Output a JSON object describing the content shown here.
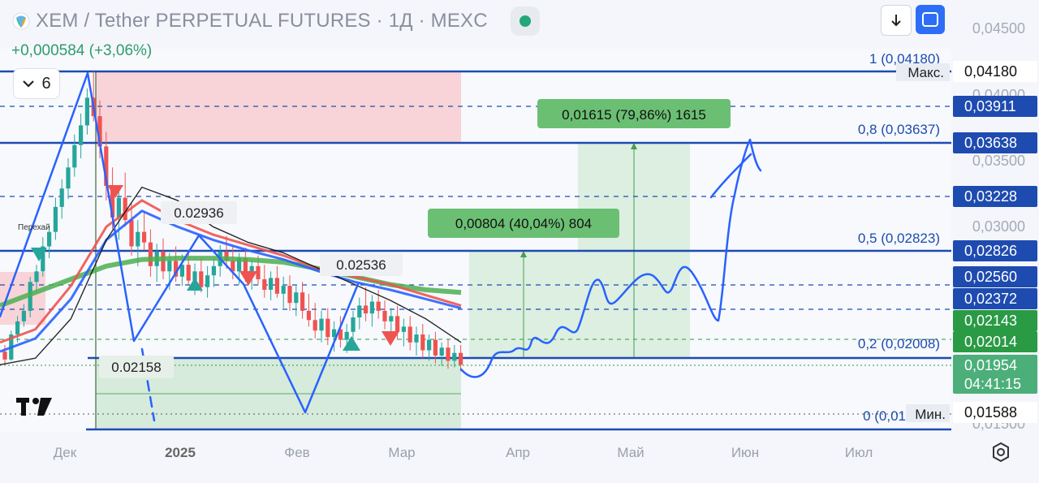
{
  "header": {
    "title": "XEM / Tether PERPETUAL FUTURES · 1Д · MEXC",
    "change": "+0,000584 (+3,06%)",
    "collapse_count": "6"
  },
  "toolbar": {
    "download_icon": "arrow-down-icon",
    "fullscreen_icon": "fullscreen-icon"
  },
  "colors": {
    "up": "#26a69a",
    "down": "#ef5350",
    "drawing": "#2962ff",
    "ma_green": "#4caf50",
    "ma_red": "#ef5350",
    "ma_blue": "#2962ff",
    "ma_black": "#111111",
    "zone_red": "#f8d4d8",
    "zone_green": "#d6ebdb",
    "label_green": "#6bbf73",
    "axis_dark_blue": "#1e4bb0",
    "axis_green": "#2a9a45"
  },
  "chart_data": {
    "type": "candlestick",
    "x_ticks": [
      "Дек",
      "2025",
      "Фев",
      "Мар",
      "Апр",
      "Май",
      "Июн",
      "Июл"
    ],
    "y_ticks": [
      "0,04500",
      "0,04000",
      "0,03500",
      "0,03000",
      "0,01500"
    ],
    "y_range": [
      0.015,
      0.0455
    ],
    "price_tags": [
      {
        "value": "0,04180",
        "style": "white"
      },
      {
        "value": "0,03911",
        "style": "dark"
      },
      {
        "value": "0,03638",
        "style": "dark"
      },
      {
        "value": "0,03228",
        "style": "dark"
      },
      {
        "value": "0,02826",
        "style": "dark"
      },
      {
        "value": "0,02560",
        "style": "dark"
      },
      {
        "value": "0,02372",
        "style": "dark"
      },
      {
        "value": "0,02143",
        "style": "green"
      },
      {
        "value": "0,02014",
        "style": "green"
      },
      {
        "value": "0,01954",
        "style": "current",
        "countdown": "04:41:15"
      },
      {
        "value": "0,01588",
        "style": "white"
      }
    ],
    "fib_labels": [
      "1 (0,04180)",
      "0,8 (0,03637)",
      "0,5 (0,02823)",
      "0,2 (0,02008)",
      "0 (0,01"
    ],
    "max_label": "Макс.",
    "min_label": "Мин.",
    "annotations": [
      "0.02936",
      "0.02536",
      "0.02158",
      "Перехай"
    ],
    "targets": [
      "0,00804 (40,04%) 804",
      "0,01615 (79,86%) 1615"
    ],
    "candles": [
      [
        0.0205,
        0.021,
        0.0195,
        0.0199
      ],
      [
        0.0199,
        0.0221,
        0.0198,
        0.0218
      ],
      [
        0.0218,
        0.0232,
        0.0212,
        0.0228
      ],
      [
        0.0228,
        0.0241,
        0.0224,
        0.0236
      ],
      [
        0.0236,
        0.0262,
        0.0231,
        0.0258
      ],
      [
        0.0258,
        0.0271,
        0.025,
        0.0266
      ],
      [
        0.0266,
        0.0292,
        0.0262,
        0.0285
      ],
      [
        0.0285,
        0.0301,
        0.0276,
        0.0296
      ],
      [
        0.0296,
        0.0322,
        0.029,
        0.0315
      ],
      [
        0.0315,
        0.0336,
        0.0306,
        0.0329
      ],
      [
        0.0329,
        0.0352,
        0.0321,
        0.0345
      ],
      [
        0.0345,
        0.037,
        0.0338,
        0.0362
      ],
      [
        0.0362,
        0.0386,
        0.0352,
        0.0377
      ],
      [
        0.0377,
        0.0405,
        0.037,
        0.0398
      ],
      [
        0.0398,
        0.0418,
        0.038,
        0.0384
      ],
      [
        0.0384,
        0.0396,
        0.0352,
        0.0361
      ],
      [
        0.0361,
        0.0372,
        0.032,
        0.0331
      ],
      [
        0.0331,
        0.0345,
        0.0298,
        0.0307
      ],
      [
        0.0307,
        0.033,
        0.029,
        0.0322
      ],
      [
        0.0322,
        0.0341,
        0.03,
        0.0305
      ],
      [
        0.0305,
        0.0318,
        0.0278,
        0.0285
      ],
      [
        0.0285,
        0.0305,
        0.027,
        0.0296
      ],
      [
        0.0296,
        0.0312,
        0.0282,
        0.0288
      ],
      [
        0.0288,
        0.0298,
        0.0262,
        0.027
      ],
      [
        0.027,
        0.0287,
        0.0258,
        0.0281
      ],
      [
        0.0281,
        0.0291,
        0.026,
        0.0266
      ],
      [
        0.0266,
        0.028,
        0.0252,
        0.0274
      ],
      [
        0.0274,
        0.0285,
        0.0258,
        0.0262
      ],
      [
        0.0262,
        0.0279,
        0.0255,
        0.0271
      ],
      [
        0.0271,
        0.0282,
        0.0256,
        0.0259
      ],
      [
        0.0259,
        0.0272,
        0.0248,
        0.0266
      ],
      [
        0.0266,
        0.0276,
        0.025,
        0.0254
      ],
      [
        0.0254,
        0.027,
        0.0246,
        0.0263
      ],
      [
        0.0263,
        0.0276,
        0.0254,
        0.027
      ],
      [
        0.027,
        0.0286,
        0.0262,
        0.0281
      ],
      [
        0.0281,
        0.0293,
        0.0268,
        0.0274
      ],
      [
        0.0274,
        0.0285,
        0.026,
        0.0266
      ],
      [
        0.0266,
        0.028,
        0.0256,
        0.0276
      ],
      [
        0.0276,
        0.0284,
        0.0258,
        0.0262
      ],
      [
        0.0262,
        0.0274,
        0.0252,
        0.027
      ],
      [
        0.027,
        0.0278,
        0.0256,
        0.026
      ],
      [
        0.026,
        0.0271,
        0.0246,
        0.0252
      ],
      [
        0.0252,
        0.0266,
        0.0244,
        0.0261
      ],
      [
        0.0261,
        0.027,
        0.0246,
        0.0249
      ],
      [
        0.0249,
        0.0262,
        0.0238,
        0.0255
      ],
      [
        0.0255,
        0.0263,
        0.0236,
        0.0242
      ],
      [
        0.0242,
        0.0256,
        0.0232,
        0.025
      ],
      [
        0.025,
        0.0258,
        0.023,
        0.0236
      ],
      [
        0.0236,
        0.0249,
        0.0224,
        0.0229
      ],
      [
        0.0229,
        0.0242,
        0.0215,
        0.0221
      ],
      [
        0.0221,
        0.0236,
        0.0212,
        0.023
      ],
      [
        0.023,
        0.0238,
        0.021,
        0.0216
      ],
      [
        0.0216,
        0.0228,
        0.0205,
        0.0222
      ],
      [
        0.0222,
        0.0232,
        0.0208,
        0.0214
      ],
      [
        0.0214,
        0.0226,
        0.0204,
        0.022
      ],
      [
        0.022,
        0.0236,
        0.0214,
        0.0231
      ],
      [
        0.0231,
        0.0246,
        0.0222,
        0.024
      ],
      [
        0.024,
        0.0254,
        0.0228,
        0.0234
      ],
      [
        0.0234,
        0.0248,
        0.0224,
        0.0243
      ],
      [
        0.0243,
        0.0252,
        0.023,
        0.0236
      ],
      [
        0.0236,
        0.0244,
        0.0222,
        0.0228
      ],
      [
        0.0228,
        0.0238,
        0.0216,
        0.0232
      ],
      [
        0.0232,
        0.024,
        0.0214,
        0.022
      ],
      [
        0.022,
        0.023,
        0.0209,
        0.0224
      ],
      [
        0.0224,
        0.0232,
        0.0206,
        0.0212
      ],
      [
        0.0212,
        0.0224,
        0.0202,
        0.0218
      ],
      [
        0.0218,
        0.0226,
        0.02,
        0.0206
      ],
      [
        0.0206,
        0.0218,
        0.0198,
        0.0214
      ],
      [
        0.0214,
        0.022,
        0.0196,
        0.0202
      ],
      [
        0.0202,
        0.0212,
        0.0194,
        0.0208
      ],
      [
        0.0208,
        0.0214,
        0.0192,
        0.0198
      ],
      [
        0.0198,
        0.021,
        0.0193,
        0.0204
      ],
      [
        0.0204,
        0.021,
        0.019,
        0.0195
      ]
    ],
    "moving_averages": [
      {
        "color": "ma_green",
        "values": [
          0.024,
          0.025,
          0.026,
          0.027,
          0.0275,
          0.0276,
          0.0276,
          0.0275,
          0.0273,
          0.0268,
          0.0262,
          0.0256,
          0.0252,
          0.025
        ]
      },
      {
        "color": "ma_blue",
        "values": [
          0.0205,
          0.0215,
          0.0245,
          0.029,
          0.0312,
          0.03,
          0.029,
          0.0282,
          0.0275,
          0.0266,
          0.0258,
          0.0252,
          0.0245,
          0.0238
        ]
      },
      {
        "color": "ma_red",
        "values": [
          0.0212,
          0.0222,
          0.0255,
          0.03,
          0.032,
          0.0305,
          0.0294,
          0.0286,
          0.0278,
          0.0268,
          0.0262,
          0.0256,
          0.0248,
          0.024
        ]
      },
      {
        "color": "ma_black",
        "values": [
          0.0195,
          0.02,
          0.023,
          0.029,
          0.033,
          0.032,
          0.03,
          0.0288,
          0.028,
          0.0268,
          0.0256,
          0.0244,
          0.023,
          0.0212
        ]
      }
    ]
  }
}
